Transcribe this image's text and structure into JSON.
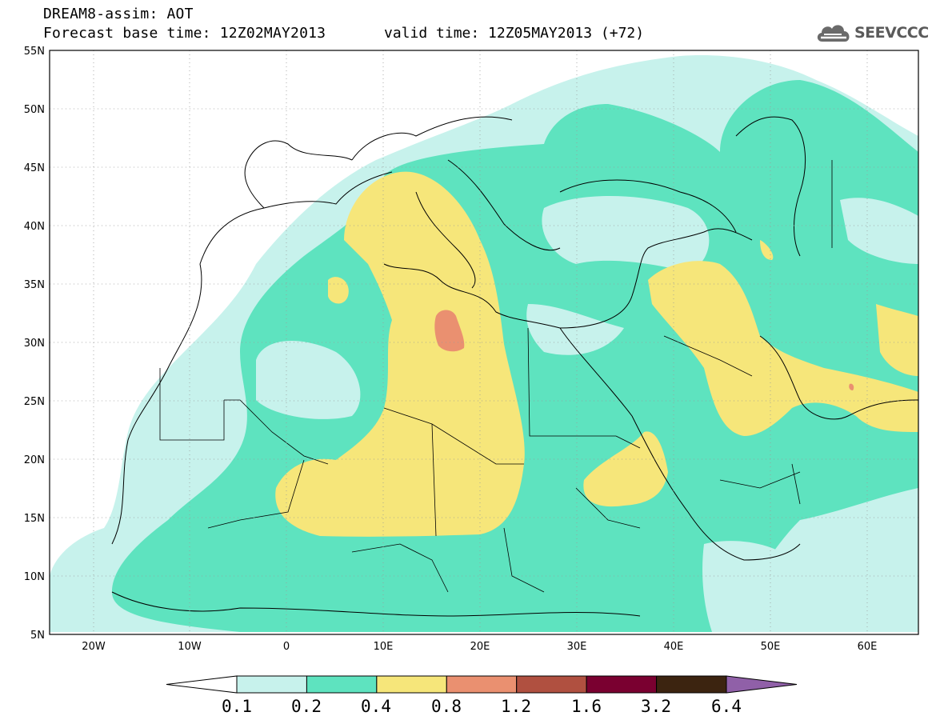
{
  "header": {
    "title": "DREAM8-assim: AOT",
    "forecast_base": "Forecast base time: 12Z02MAY2013",
    "valid_time": "valid time: 12Z05MAY2013 (+72)"
  },
  "logo": {
    "text": "SEEVCCC",
    "icon": "cloud-icon"
  },
  "axes": {
    "lat_labels": [
      "55N",
      "50N",
      "45N",
      "40N",
      "35N",
      "30N",
      "25N",
      "20N",
      "15N",
      "10N",
      "5N"
    ],
    "lon_labels": [
      "20W",
      "10W",
      "0",
      "10E",
      "20E",
      "30E",
      "40E",
      "50E",
      "60E"
    ]
  },
  "legend": {
    "levels": [
      "0.1",
      "0.2",
      "0.4",
      "0.8",
      "1.2",
      "1.6",
      "3.2",
      "6.4"
    ],
    "colors": [
      "#ffffff",
      "#c7f2ec",
      "#5ee3bf",
      "#f6e67a",
      "#ea9070",
      "#b05040",
      "#7a0030",
      "#3c2410",
      "#9060a8"
    ]
  },
  "colors": {
    "c01": "#c7f2ec",
    "c02": "#5ee3bf",
    "c04": "#f6e67a",
    "c08": "#ea9070",
    "border": "#000000"
  }
}
